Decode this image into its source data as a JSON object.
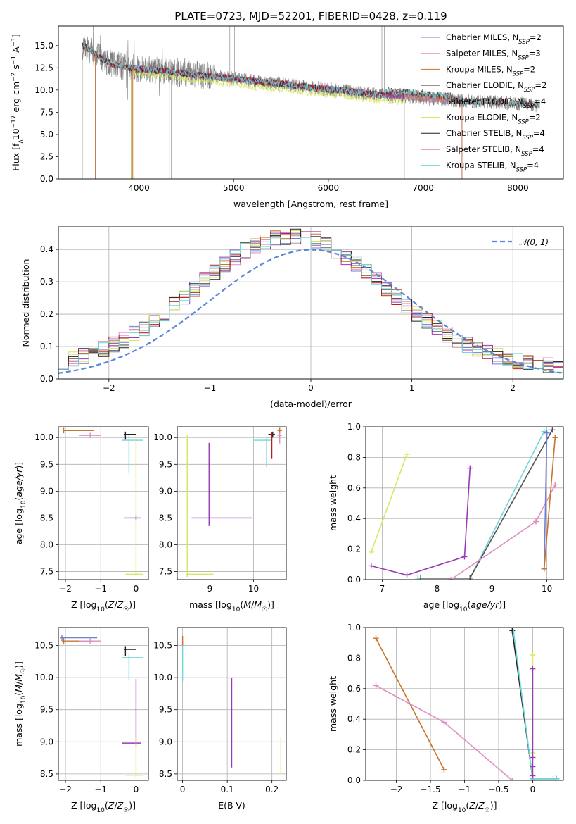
{
  "colors": {
    "chabrier_miles": "#6f7fd6",
    "salpeter_miles": "#e08cc2",
    "kroupa_miles": "#c8742b",
    "chabrier_elodie": "#555555",
    "salpeter_elodie": "#9b38b8",
    "kroupa_elodie": "#d6e85f",
    "chabrier_stelib": "#222222",
    "salpeter_stelib": "#b22222",
    "kroupa_stelib": "#6fd6dc",
    "data": "#808080",
    "normal": "#5b86d8"
  },
  "chart_data": [
    {
      "id": "spectrum",
      "type": "line",
      "title": "PLATE=0723, MJD=52201, FIBERID=0428, z=0.119",
      "xlabel": "wavelength [Angstrom, rest frame]",
      "ylabel": "Flux [f_λ 10^-17 erg cm^-2 s^-1 A^-1]",
      "xlim": [
        3150,
        8480
      ],
      "ylim": [
        0,
        17.2
      ],
      "xticks": [
        4000,
        5000,
        6000,
        7000,
        8000
      ],
      "yticks": [
        0.0,
        2.5,
        5.0,
        7.5,
        10.0,
        12.5,
        15.0
      ],
      "legend_position": "upper-right",
      "legend": [
        "Chabrier MILES, N_SSP=2",
        "Salpeter MILES, N_SSP=3",
        "Kroupa MILES, N_SSP=2",
        "Chabrier ELODIE, N_SSP=2",
        "Salpeter ELODIE, N_SSP=4",
        "Kroupa ELODIE, N_SSP=2",
        "Chabrier STELIB, N_SSP=4",
        "Salpeter STELIB, N_SSP=4",
        "Kroupa STELIB, N_SSP=4"
      ],
      "continuum": {
        "x": [
          3400,
          3500,
          3600,
          3700,
          3800,
          3900,
          4000,
          4200,
          4400,
          4600,
          4800,
          5000,
          5200,
          5400,
          5600,
          5800,
          6000,
          6200,
          6400,
          6600,
          6800,
          7000,
          7200,
          7400,
          7600,
          7800,
          8000,
          8200,
          8230
        ],
        "y": [
          15.0,
          14.5,
          13.6,
          13.0,
          12.7,
          12.5,
          12.4,
          12.2,
          12.0,
          11.7,
          11.5,
          11.3,
          11.0,
          10.8,
          10.6,
          10.3,
          10.1,
          9.9,
          9.6,
          9.4,
          9.3,
          9.1,
          8.9,
          8.8,
          8.7,
          8.6,
          8.5,
          8.3,
          8.3
        ]
      }
    },
    {
      "id": "residuals",
      "type": "line",
      "xlabel": "(data-model)/error",
      "ylabel": "Normed distribution",
      "xlim": [
        -2.5,
        2.5
      ],
      "ylim": [
        0,
        0.47
      ],
      "xticks": [
        -2,
        -1,
        0,
        1,
        2
      ],
      "yticks": [
        0.0,
        0.1,
        0.2,
        0.3,
        0.4
      ],
      "gaussian_label": "𝒩(0, 1)",
      "hist_bin_width": 0.1
    },
    {
      "id": "age_vs_Z",
      "type": "scatter",
      "xlabel": "Z [log10(Z/Z☉)]",
      "ylabel": "age  [log10(age/yr)]",
      "xlim": [
        -2.2,
        0.35
      ],
      "ylim": [
        7.35,
        10.2
      ],
      "xticks": [
        -2,
        -1,
        0
      ],
      "yticks": [
        7.5,
        8.0,
        8.5,
        9.0,
        9.5,
        10.0
      ],
      "errorbars": [
        {
          "s": "kroupa_miles",
          "x": -2.05,
          "y": 10.13,
          "xe": [
            0.0,
            0.85
          ],
          "ye": [
            0.05,
            0.05
          ]
        },
        {
          "s": "salpeter_miles",
          "x": -1.3,
          "y": 10.04,
          "xe": [
            0.3,
            0.3
          ],
          "ye": [
            0.05,
            0.05
          ]
        },
        {
          "s": "chabrier_stelib",
          "x": -0.3,
          "y": 10.06,
          "xe": [
            0.05,
            0.3
          ],
          "ye": [
            0.1,
            0.05
          ]
        },
        {
          "s": "kroupa_stelib",
          "x": -0.2,
          "y": 9.95,
          "xe": [
            0.2,
            0.4
          ],
          "ye": [
            0.6,
            0.1
          ]
        },
        {
          "s": "kroupa_elodie",
          "x": 0.0,
          "y": 10.0,
          "xe": [
            0.02,
            0.02
          ],
          "ye": [
            2.55,
            0.05
          ]
        },
        {
          "s": "salpeter_elodie",
          "x": 0.0,
          "y": 8.5,
          "xe": [
            0.35,
            0.15
          ],
          "ye": [
            0.05,
            0.05
          ]
        },
        {
          "s": "kroupa_elodie",
          "x": 0.0,
          "y": 7.45,
          "xe": [
            0.3,
            0.2
          ],
          "ye": [
            0.05,
            0.05
          ]
        }
      ]
    },
    {
      "id": "age_vs_mass",
      "type": "scatter",
      "xlabel": "mass [log10(M/M☉)]",
      "ylabel": "",
      "xlim": [
        8.25,
        10.75
      ],
      "ylim": [
        7.35,
        10.2
      ],
      "xticks": [
        9,
        10
      ],
      "yticks": [
        7.5,
        8.0,
        8.5,
        9.0,
        9.5,
        10.0
      ],
      "errorbars": [
        {
          "s": "kroupa_elodie",
          "x": 8.48,
          "y": 7.45,
          "xe": [
            0.02,
            0.6
          ],
          "ye": [
            0.05,
            2.6
          ]
        },
        {
          "s": "salpeter_elodie",
          "x": 8.98,
          "y": 8.5,
          "xe": [
            0.4,
            1.0
          ],
          "ye": [
            0.15,
            1.4
          ]
        },
        {
          "s": "kroupa_stelib",
          "x": 10.3,
          "y": 9.95,
          "xe": [
            0.3,
            0.1
          ],
          "ye": [
            0.5,
            0.05
          ]
        },
        {
          "s": "chabrier_stelib",
          "x": 10.44,
          "y": 10.06,
          "xe": [
            0.1,
            0.05
          ],
          "ye": [
            0.05,
            0.05
          ]
        },
        {
          "s": "salpeter_stelib",
          "x": 10.42,
          "y": 10.0,
          "xe": [
            0.02,
            0.02
          ],
          "ye": [
            0.4,
            0.1
          ]
        },
        {
          "s": "kroupa_miles",
          "x": 10.6,
          "y": 10.13,
          "xe": [
            0.05,
            0.05
          ],
          "ye": [
            0.05,
            0.05
          ]
        },
        {
          "s": "salpeter_miles",
          "x": 10.6,
          "y": 10.04,
          "xe": [
            0.05,
            0.05
          ],
          "ye": [
            0.15,
            0.05
          ]
        }
      ]
    },
    {
      "id": "massweight_vs_age",
      "type": "line",
      "xlabel": "age  [log10(age/yr)]",
      "ylabel": "mass weight",
      "xlim": [
        6.7,
        10.3
      ],
      "ylim": [
        0,
        1.0
      ],
      "xticks": [
        7,
        8,
        9,
        10
      ],
      "yticks": [
        0.0,
        0.2,
        0.4,
        0.6,
        0.8,
        1.0
      ],
      "series": [
        {
          "s": "kroupa_elodie",
          "x": [
            6.8,
            7.45
          ],
          "y": [
            0.18,
            0.82
          ]
        },
        {
          "s": "salpeter_elodie",
          "x": [
            6.8,
            7.45,
            8.5,
            8.6
          ],
          "y": [
            0.09,
            0.03,
            0.15,
            0.73
          ]
        },
        {
          "s": "kroupa_stelib",
          "x": [
            7.65,
            8.6,
            9.95
          ],
          "y": [
            0.01,
            0.01,
            0.97
          ]
        },
        {
          "s": "chabrier_elodie",
          "x": [
            7.7,
            8.6,
            10.1
          ],
          "y": [
            0.01,
            0.01,
            0.98
          ]
        },
        {
          "s": "salpeter_miles",
          "x": [
            8.25,
            9.8,
            10.15
          ],
          "y": [
            0.0,
            0.38,
            0.62
          ]
        },
        {
          "s": "chabrier_miles",
          "x": [
            9.95,
            10.0
          ],
          "y": [
            0.07,
            0.96
          ]
        },
        {
          "s": "kroupa_miles",
          "x": [
            9.95,
            10.15
          ],
          "y": [
            0.07,
            0.93
          ]
        }
      ]
    },
    {
      "id": "mass_vs_Z",
      "type": "scatter",
      "xlabel": "Z [log10(Z/Z☉)]",
      "ylabel": "mass [log10(M/M☉)]",
      "xlim": [
        -2.2,
        0.35
      ],
      "ylim": [
        8.4,
        10.78
      ],
      "xticks": [
        -2,
        -1,
        0
      ],
      "yticks": [
        8.5,
        9.0,
        9.5,
        10.0,
        10.5
      ],
      "errorbars": [
        {
          "s": "chabrier_miles",
          "x": -2.1,
          "y": 10.62,
          "xe": [
            0.05,
            1.0
          ],
          "ye": [
            0.05,
            0.05
          ]
        },
        {
          "s": "kroupa_miles",
          "x": -2.05,
          "y": 10.57,
          "xe": [
            0.05,
            0.85
          ],
          "ye": [
            0.05,
            0.05
          ]
        },
        {
          "s": "salpeter_miles",
          "x": -1.3,
          "y": 10.57,
          "xe": [
            0.3,
            0.3
          ],
          "ye": [
            0.05,
            0.05
          ]
        },
        {
          "s": "chabrier_stelib",
          "x": -0.3,
          "y": 10.44,
          "xe": [
            0.05,
            0.3
          ],
          "ye": [
            0.1,
            0.05
          ]
        },
        {
          "s": "kroupa_stelib",
          "x": -0.2,
          "y": 10.31,
          "xe": [
            0.2,
            0.4
          ],
          "ye": [
            0.35,
            0.05
          ]
        },
        {
          "s": "salpeter_elodie",
          "x": 0.0,
          "y": 8.98,
          "xe": [
            0.4,
            0.15
          ],
          "ye": [
            0.05,
            1.0
          ]
        },
        {
          "s": "kroupa_elodie",
          "x": 0.0,
          "y": 8.48,
          "xe": [
            0.3,
            0.2
          ],
          "ye": [
            0.05,
            0.6
          ]
        }
      ]
    },
    {
      "id": "mass_vs_ebv",
      "type": "scatter",
      "xlabel": "E(B-V)",
      "ylabel": "",
      "xlim": [
        -0.012,
        0.232
      ],
      "ylim": [
        8.4,
        10.78
      ],
      "xticks": [
        0.0,
        0.1,
        0.2
      ],
      "yticks": [
        8.5,
        9.0,
        9.5,
        10.0,
        10.5
      ],
      "errorbars": [
        {
          "s": "kroupa_stelib",
          "x": 0.0,
          "y": 10.35,
          "xe": [
            0,
            0
          ],
          "ye": [
            0.4,
            0.2
          ]
        },
        {
          "s": "kroupa_miles",
          "x": 0.0,
          "y": 10.6,
          "xe": [
            0,
            0
          ],
          "ye": [
            0.1,
            0.05
          ]
        },
        {
          "s": "salpeter_elodie",
          "x": 0.11,
          "y": 9.3,
          "xe": [
            0,
            0
          ],
          "ye": [
            0.7,
            0.7
          ]
        },
        {
          "s": "kroupa_elodie",
          "x": 0.22,
          "y": 8.78,
          "xe": [
            0,
            0
          ],
          "ye": [
            0.28,
            0.28
          ]
        }
      ]
    },
    {
      "id": "massweight_vs_Z",
      "type": "line",
      "xlabel": "Z [log10(Z/Z☉)]",
      "ylabel": "mass weight",
      "xlim": [
        -2.45,
        0.45
      ],
      "ylim": [
        0,
        1.0
      ],
      "xticks": [
        -2.0,
        -1.5,
        -1.0,
        -0.5,
        0.0
      ],
      "yticks": [
        0.0,
        0.2,
        0.4,
        0.6,
        0.8,
        1.0
      ],
      "series": [
        {
          "s": "kroupa_miles",
          "x": [
            -2.3,
            -1.3
          ],
          "y": [
            0.93,
            0.07
          ]
        },
        {
          "s": "salpeter_miles",
          "x": [
            -2.3,
            -1.3,
            -0.3
          ],
          "y": [
            0.62,
            0.38,
            0.0
          ]
        },
        {
          "s": "chabrier_stelib",
          "x": [
            -0.3,
            0.0,
            0.0,
            0.35
          ],
          "y": [
            0.98,
            0.01,
            0.01,
            0.01
          ]
        },
        {
          "s": "kroupa_stelib",
          "x": [
            -0.28,
            0.0,
            0.3,
            0.35
          ],
          "y": [
            0.97,
            0.01,
            0.01,
            0.01
          ]
        },
        {
          "s": "kroupa_elodie",
          "x": [
            0.0,
            0.0
          ],
          "y": [
            0.18,
            0.82
          ]
        },
        {
          "s": "salpeter_elodie",
          "x": [
            0.0,
            0.0,
            0.0,
            0.0
          ],
          "y": [
            0.73,
            0.15,
            0.09,
            0.03
          ]
        }
      ]
    }
  ]
}
